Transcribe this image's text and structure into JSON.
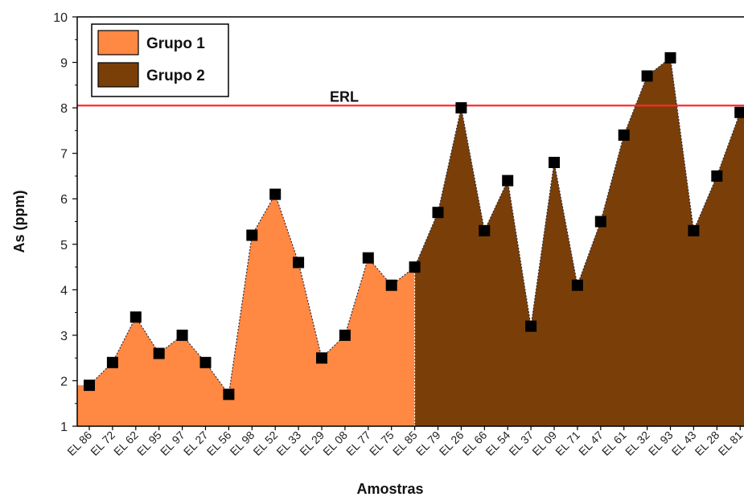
{
  "chart_data": {
    "type": "area",
    "xlabel": "Amostras",
    "ylabel": "As (ppm)",
    "ylim": [
      1,
      10
    ],
    "yticks": [
      1,
      2,
      3,
      4,
      5,
      6,
      7,
      8,
      9,
      10
    ],
    "categories": [
      "EL 86",
      "EL 72",
      "EL 62",
      "EL 95",
      "EL 97",
      "EL 27",
      "EL 56",
      "EL 98",
      "EL 52",
      "EL 33",
      "EL 29",
      "EL 08",
      "EL 77",
      "EL 75",
      "EL 85",
      "EL 79",
      "EL 26",
      "EL 66",
      "EL 54",
      "EL 37",
      "EL 09",
      "EL 71",
      "EL 47",
      "EL 61",
      "EL 32",
      "EL 93",
      "EL 43",
      "EL 28",
      "EL 81"
    ],
    "values": [
      1.9,
      2.4,
      3.4,
      2.6,
      3.0,
      2.4,
      1.7,
      5.2,
      6.1,
      4.6,
      2.5,
      3.0,
      4.7,
      4.1,
      4.5,
      5.7,
      8.0,
      5.3,
      6.4,
      3.2,
      6.8,
      4.1,
      5.5,
      7.4,
      8.7,
      9.1,
      5.3,
      6.5,
      7.9
    ],
    "series": [
      {
        "name": "Grupo 1",
        "start": 0,
        "end": 14,
        "color": "#ff8843"
      },
      {
        "name": "Grupo 2",
        "start": 14,
        "end": 28,
        "color": "#7a3f08"
      }
    ],
    "reference_line": {
      "label": "ERL",
      "value": 8.05,
      "color": "#ff2a2a"
    },
    "legend_position": "top-left",
    "grid": false
  }
}
